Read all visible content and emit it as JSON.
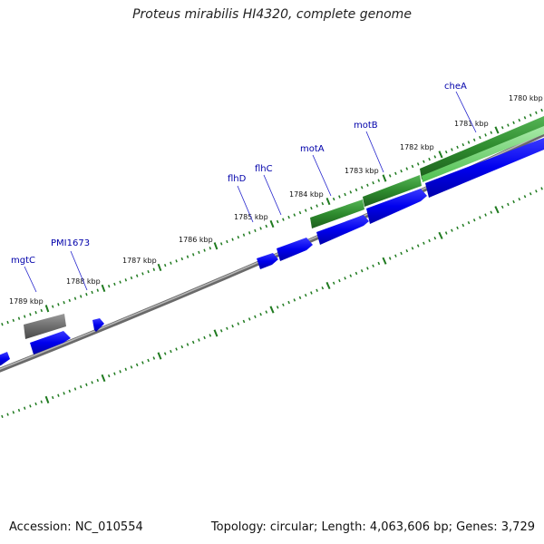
{
  "title": "Proteus mirabilis HI4320, complete genome",
  "footer": {
    "accession": "Accession: NC_010554",
    "summary": "Topology: circular; Length: 4,063,606 bp; Genes: 3,729"
  },
  "colors": {
    "background": "#ffffff",
    "backbone": "#888888",
    "ticks": "#1f7a1f",
    "gene_forward": "#0000ee",
    "gene_highlight": "#2e8b2e",
    "gene_highlight_light": "#7ed47e",
    "gene_other": "#6e6e6e",
    "label": "#0000aa"
  },
  "kbp_ticks": [
    {
      "label": "1789 kbp"
    },
    {
      "label": "1788 kbp"
    },
    {
      "label": "1787 kbp"
    },
    {
      "label": "1786 kbp"
    },
    {
      "label": "1785 kbp"
    },
    {
      "label": "1784 kbp"
    },
    {
      "label": "1783 kbp"
    },
    {
      "label": "1782 kbp"
    },
    {
      "label": "1781 kbp"
    },
    {
      "label": "1780 kbp"
    }
  ],
  "gene_labels": [
    {
      "name": "mgtC"
    },
    {
      "name": "PMI1673"
    },
    {
      "name": "flhD"
    },
    {
      "name": "flhC"
    },
    {
      "name": "motA"
    },
    {
      "name": "motB"
    },
    {
      "name": "cheA"
    }
  ]
}
